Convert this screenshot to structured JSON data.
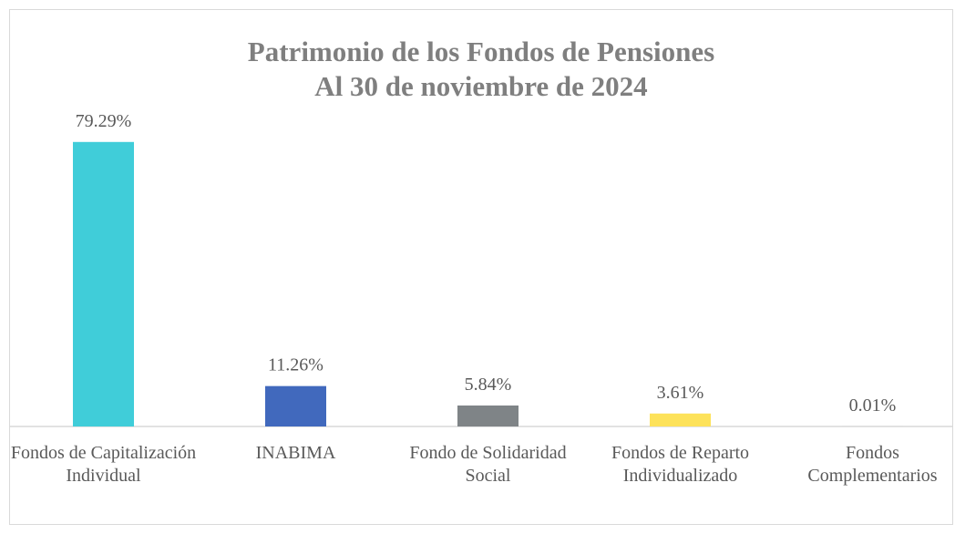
{
  "chart_data": {
    "type": "bar",
    "title": "Patrimonio de los Fondos de Pensiones",
    "subtitle": "Al 30 de noviembre de 2024",
    "categories": [
      "Fondos de Capitalización Individual",
      "INABIMA",
      "Fondo de Solidaridad Social",
      "Fondos de Reparto Individualizado",
      "Fondos Complementarios"
    ],
    "values": [
      79.29,
      11.26,
      5.84,
      3.61,
      0.01
    ],
    "value_labels": [
      "79.29%",
      "11.26%",
      "5.84%",
      "3.61%",
      "0.01%"
    ],
    "colors": [
      "#40cdd9",
      "#4169bd",
      "#7f8487",
      "#fde25a",
      "#a5a5a5"
    ],
    "ylim": [
      0,
      80
    ]
  }
}
